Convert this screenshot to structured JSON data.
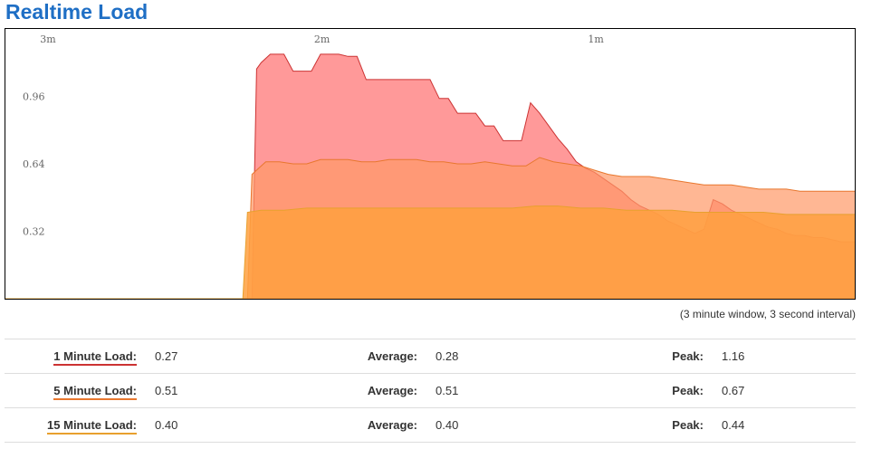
{
  "page": {
    "title": "Realtime Load",
    "window_note": "(3 minute window, 3 second interval)"
  },
  "rows": [
    {
      "label": "1 Minute Load:",
      "value": "0.27",
      "avg_label": "Average:",
      "avg_value": "0.28",
      "peak_label": "Peak:",
      "peak_value": "1.16",
      "color": "#cc3333"
    },
    {
      "label": "5 Minute Load:",
      "value": "0.51",
      "avg_label": "Average:",
      "avg_value": "0.51",
      "peak_label": "Peak:",
      "peak_value": "0.67",
      "color": "#e8772e"
    },
    {
      "label": "15 Minute Load:",
      "value": "0.40",
      "avg_label": "Average:",
      "avg_value": "0.40",
      "peak_label": "Peak:",
      "peak_value": "0.44",
      "color": "#e8a02e"
    }
  ],
  "chart_data": {
    "type": "area",
    "x_unit": "seconds ago",
    "xlim": [
      186,
      0
    ],
    "ylim": [
      0,
      1.28
    ],
    "x_tick_labels": [
      {
        "x": 180,
        "label": "3m"
      },
      {
        "x": 120,
        "label": "2m"
      },
      {
        "x": 60,
        "label": "1m"
      }
    ],
    "y_tick_labels": [
      {
        "y": 0.32,
        "label": "0.32"
      },
      {
        "y": 0.64,
        "label": "0.64"
      },
      {
        "y": 0.96,
        "label": "0.96"
      }
    ],
    "grid": false,
    "legend": "table-below",
    "series": [
      {
        "name": "1 Minute Load",
        "fill": "#ff8080",
        "fill_opacity": 0.8,
        "stroke": "#cc3333",
        "x": [
          186,
          132,
          131,
          130,
          128,
          127,
          125,
          123,
          121,
          119,
          117,
          115,
          113,
          111,
          109,
          107,
          105,
          103,
          101,
          99,
          97,
          95,
          93,
          91,
          89,
          87,
          85,
          83,
          81,
          79,
          77,
          75,
          73,
          71,
          69,
          67,
          65,
          63,
          61,
          59,
          57,
          55,
          53,
          51,
          49,
          47,
          45,
          43,
          41,
          39,
          37,
          35,
          33,
          31,
          29,
          27,
          25,
          23,
          21,
          19,
          17,
          15,
          13,
          11,
          9,
          7,
          5,
          3,
          1,
          0
        ],
        "y": [
          0,
          0,
          1.09,
          1.12,
          1.16,
          1.16,
          1.16,
          1.08,
          1.08,
          1.08,
          1.16,
          1.16,
          1.16,
          1.15,
          1.15,
          1.04,
          1.04,
          1.04,
          1.04,
          1.04,
          1.04,
          1.04,
          1.04,
          0.95,
          0.95,
          0.88,
          0.88,
          0.88,
          0.82,
          0.82,
          0.75,
          0.75,
          0.75,
          0.93,
          0.88,
          0.82,
          0.76,
          0.71,
          0.65,
          0.62,
          0.6,
          0.57,
          0.54,
          0.51,
          0.47,
          0.44,
          0.42,
          0.4,
          0.37,
          0.35,
          0.33,
          0.31,
          0.33,
          0.47,
          0.45,
          0.42,
          0.4,
          0.38,
          0.36,
          0.34,
          0.33,
          0.31,
          0.3,
          0.3,
          0.29,
          0.29,
          0.28,
          0.27,
          0.27,
          0.27
        ]
      },
      {
        "name": "5 Minute Load",
        "fill": "#ff9966",
        "fill_opacity": 0.7,
        "stroke": "#e8772e",
        "x": [
          186,
          133,
          132,
          129,
          126,
          123,
          120,
          117,
          114,
          111,
          108,
          105,
          102,
          99,
          96,
          93,
          90,
          87,
          84,
          81,
          78,
          75,
          72,
          69,
          66,
          63,
          60,
          57,
          54,
          51,
          48,
          45,
          42,
          39,
          36,
          33,
          30,
          27,
          24,
          21,
          18,
          15,
          12,
          9,
          6,
          3,
          0
        ],
        "y": [
          0,
          0,
          0.59,
          0.65,
          0.65,
          0.64,
          0.64,
          0.66,
          0.66,
          0.66,
          0.65,
          0.65,
          0.66,
          0.66,
          0.66,
          0.65,
          0.65,
          0.64,
          0.64,
          0.65,
          0.64,
          0.63,
          0.63,
          0.67,
          0.65,
          0.64,
          0.63,
          0.61,
          0.59,
          0.58,
          0.58,
          0.58,
          0.57,
          0.56,
          0.55,
          0.54,
          0.54,
          0.54,
          0.53,
          0.52,
          0.52,
          0.52,
          0.51,
          0.51,
          0.51,
          0.51,
          0.51
        ]
      },
      {
        "name": "15 Minute Load",
        "fill": "#ffa040",
        "fill_opacity": 0.85,
        "stroke": "#e8a02e",
        "x": [
          186,
          134,
          133,
          130,
          125,
          120,
          115,
          110,
          105,
          100,
          95,
          90,
          85,
          80,
          75,
          70,
          65,
          60,
          55,
          50,
          45,
          40,
          35,
          30,
          25,
          20,
          15,
          10,
          5,
          0
        ],
        "y": [
          0,
          0,
          0.41,
          0.42,
          0.42,
          0.43,
          0.43,
          0.43,
          0.43,
          0.43,
          0.43,
          0.43,
          0.43,
          0.43,
          0.43,
          0.44,
          0.44,
          0.43,
          0.43,
          0.42,
          0.42,
          0.42,
          0.41,
          0.41,
          0.41,
          0.41,
          0.4,
          0.4,
          0.4,
          0.4
        ]
      }
    ]
  }
}
